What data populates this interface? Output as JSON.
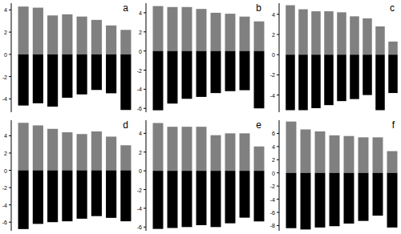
{
  "chart_data": [
    {
      "type": "bar",
      "title": "a",
      "stacked": true,
      "tick_labels": "y",
      "categories": [
        null,
        null,
        null,
        null,
        null,
        null,
        null,
        null
      ],
      "series": [
        {
          "color": "#808080",
          "values": [
            4.3,
            4.2,
            3.5,
            3.6,
            3.4,
            3.1,
            2.6,
            2.2
          ]
        },
        {
          "color": "#000000",
          "values": [
            -4.6,
            -4.4,
            -4.7,
            -3.9,
            -3.6,
            -3.2,
            -3.5,
            -5.0
          ]
        }
      ],
      "ylim": [
        -5.2,
        4.6
      ],
      "yticks": [
        -4,
        -2,
        0,
        2,
        4
      ]
    },
    {
      "type": "bar",
      "title": "b",
      "stacked": true,
      "tick_labels": "y",
      "categories": [
        null,
        null,
        null,
        null,
        null,
        null,
        null,
        null
      ],
      "series": [
        {
          "color": "#808080",
          "values": [
            4.7,
            4.6,
            4.6,
            4.4,
            4.0,
            3.9,
            3.6,
            3.1
          ]
        },
        {
          "color": "#000000",
          "values": [
            -6.2,
            -5.5,
            -5.0,
            -4.8,
            -4.4,
            -4.2,
            -4.1,
            -6.0
          ]
        }
      ],
      "ylim": [
        -6.4,
        5.0
      ],
      "yticks": [
        -6,
        -4,
        -2,
        0,
        2,
        4
      ]
    },
    {
      "type": "bar",
      "title": "c",
      "stacked": true,
      "tick_labels": "y",
      "categories": [
        null,
        null,
        null,
        null,
        null,
        null,
        null,
        null,
        null
      ],
      "series": [
        {
          "color": "#808080",
          "values": [
            4.9,
            4.5,
            4.3,
            4.3,
            4.2,
            3.8,
            3.6,
            2.8,
            1.3
          ]
        },
        {
          "color": "#000000",
          "values": [
            -5.5,
            -5.5,
            -5.3,
            -5.0,
            -4.6,
            -4.4,
            -4.0,
            -5.5,
            -3.8
          ]
        }
      ],
      "ylim": [
        -5.7,
        5.1
      ],
      "yticks": [
        -4,
        -2,
        0,
        2,
        4
      ]
    },
    {
      "type": "bar",
      "title": "d",
      "stacked": true,
      "tick_labels": "y",
      "categories": [
        null,
        null,
        null,
        null,
        null,
        null,
        null,
        null
      ],
      "series": [
        {
          "color": "#808080",
          "values": [
            5.5,
            5.2,
            4.8,
            4.4,
            4.2,
            4.5,
            3.9,
            2.9
          ]
        },
        {
          "color": "#000000",
          "values": [
            -6.8,
            -6.2,
            -6.0,
            -5.9,
            -5.6,
            -5.3,
            -5.5,
            -5.9
          ]
        }
      ],
      "ylim": [
        -7.0,
        5.8
      ],
      "yticks": [
        -6,
        -4,
        -2,
        0,
        2,
        4
      ]
    },
    {
      "type": "bar",
      "title": "e",
      "stacked": true,
      "tick_labels": "y",
      "categories": [
        null,
        null,
        null,
        null,
        null,
        null,
        null,
        null
      ],
      "series": [
        {
          "color": "#808080",
          "values": [
            5.1,
            4.7,
            4.7,
            4.7,
            3.8,
            4.0,
            4.0,
            2.6
          ]
        },
        {
          "color": "#000000",
          "values": [
            -6.2,
            -6.1,
            -6.0,
            -5.8,
            -6.0,
            -5.6,
            -5.0,
            -5.4
          ]
        }
      ],
      "ylim": [
        -6.4,
        5.4
      ],
      "yticks": [
        -6,
        -4,
        -2,
        0,
        2,
        4
      ]
    },
    {
      "type": "bar",
      "title": "f",
      "stacked": true,
      "tick_labels": "y",
      "categories": [
        null,
        null,
        null,
        null,
        null,
        null,
        null,
        null
      ],
      "series": [
        {
          "color": "#808080",
          "values": [
            7.8,
            6.6,
            6.3,
            5.7,
            5.6,
            5.4,
            5.4,
            3.3
          ]
        },
        {
          "color": "#000000",
          "values": [
            -8.4,
            -8.6,
            -8.3,
            -8.1,
            -7.7,
            -7.3,
            -6.5,
            -8.3
          ]
        }
      ],
      "ylim": [
        -8.8,
        8.0
      ],
      "yticks": [
        -8,
        -6,
        -4,
        -2,
        0,
        2,
        4,
        6
      ]
    }
  ]
}
